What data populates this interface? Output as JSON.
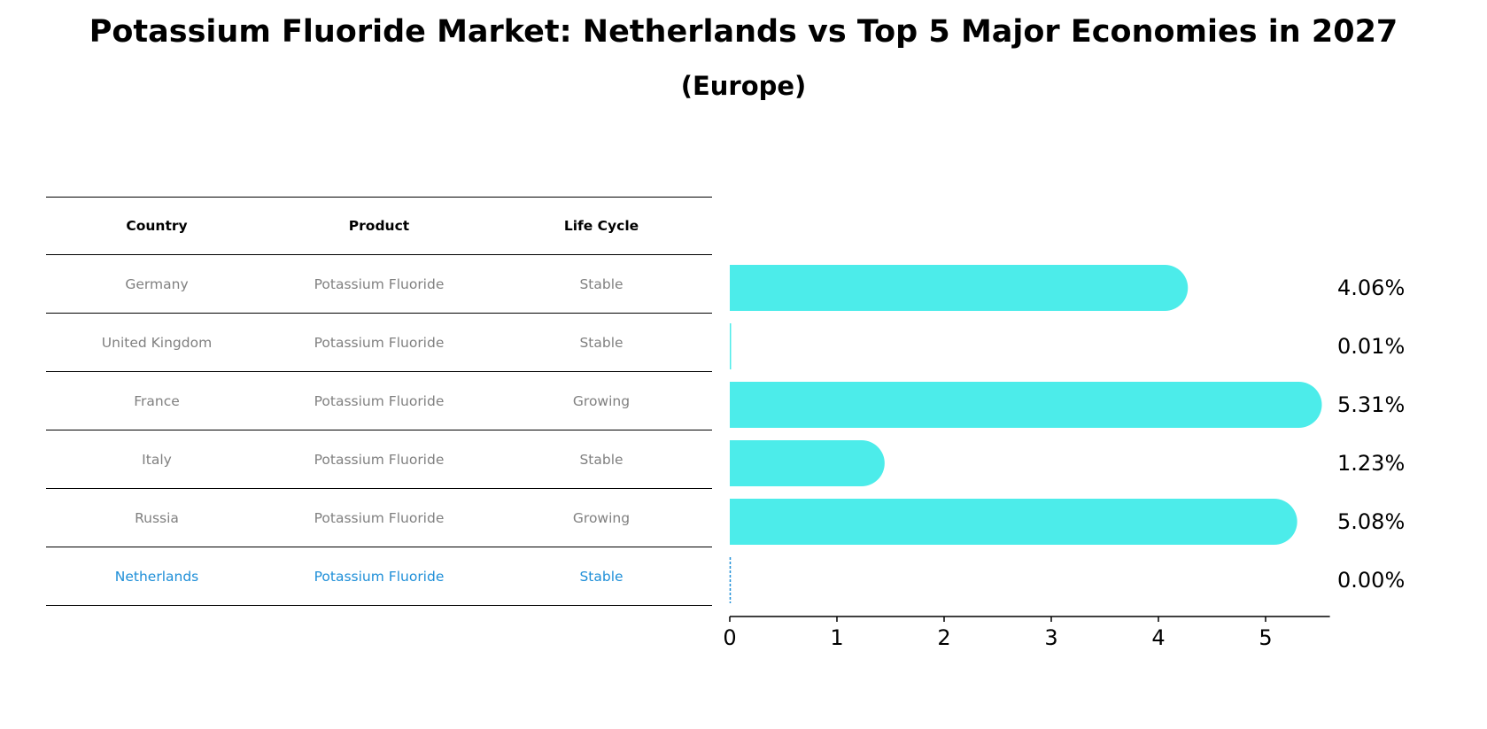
{
  "title": "Potassium Fluoride Market: Netherlands vs Top 5 Major Economies in 2027",
  "subtitle": "(Europe)",
  "table": {
    "headers": [
      "Country",
      "Product",
      "Life Cycle"
    ],
    "rows": [
      [
        "Germany",
        "Potassium Fluoride",
        "Stable"
      ],
      [
        "United Kingdom",
        "Potassium Fluoride",
        "Stable"
      ],
      [
        "France",
        "Potassium Fluoride",
        "Growing"
      ],
      [
        "Italy",
        "Potassium Fluoride",
        "Stable"
      ],
      [
        "Russia",
        "Potassium Fluoride",
        "Growing"
      ],
      [
        "Netherlands",
        "Potassium Fluoride",
        "Stable"
      ]
    ]
  },
  "colors": {
    "bar": "#4cecea",
    "highlight": "#1f8fd8",
    "axis": "#000000"
  },
  "chart_data": {
    "type": "bar",
    "orientation": "horizontal",
    "categories": [
      "Germany",
      "United Kingdom",
      "France",
      "Italy",
      "Russia",
      "Netherlands"
    ],
    "values": [
      4.06,
      0.01,
      5.31,
      1.23,
      5.08,
      0.0
    ],
    "value_labels": [
      "4.06%",
      "0.01%",
      "5.31%",
      "1.23%",
      "5.08%",
      "0.00%"
    ],
    "xticks": [
      0,
      1,
      2,
      3,
      4,
      5
    ],
    "xtick_labels": [
      "0",
      "1",
      "2",
      "3",
      "4",
      "5"
    ],
    "xlim": [
      0,
      5.6
    ],
    "highlight": "Netherlands",
    "title": "Potassium Fluoride Market: Netherlands vs Top 5 Major Economies in 2027",
    "xlabel": "",
    "ylabel": ""
  }
}
